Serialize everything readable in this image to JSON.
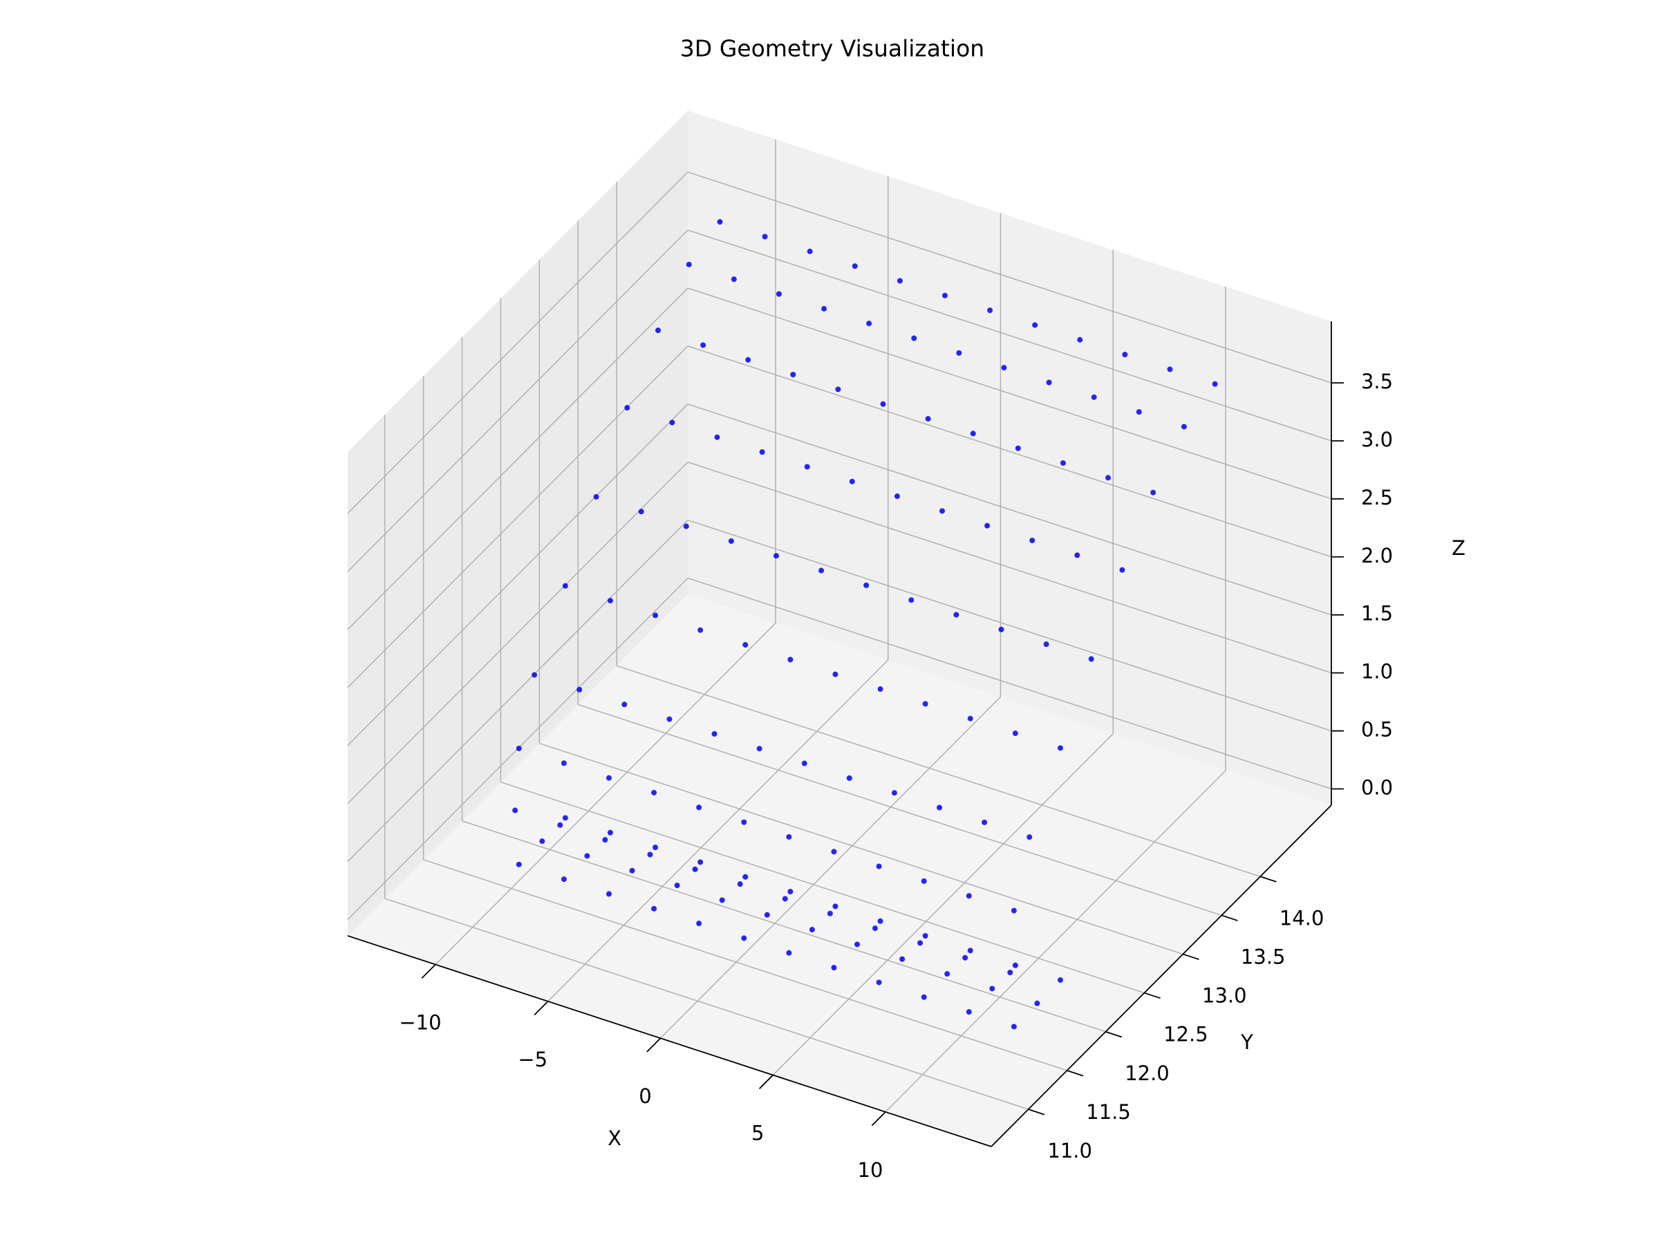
{
  "chart_data": {
    "type": "scatter3d",
    "title": "3D Geometry Visualization",
    "x_label": "X",
    "y_label": "Y",
    "z_label": "Z",
    "color": "#0000ff",
    "grid": true,
    "xlim": [
      -13.9,
      14.7
    ],
    "ylim": [
      10.52,
      14.92
    ],
    "zlim": [
      -0.14,
      4.03
    ],
    "xticks": [
      {
        "value": -10,
        "label": "−10"
      },
      {
        "value": -5,
        "label": "−5"
      },
      0,
      5,
      10
    ],
    "yticks": [
      {
        "value": 11,
        "label": "11.0"
      },
      11.5,
      {
        "value": 12,
        "label": "12.0"
      },
      12.5,
      {
        "value": 13,
        "label": "13.0"
      },
      13.5,
      {
        "value": 14,
        "label": "14.0"
      }
    ],
    "zticks": [
      {
        "value": 0,
        "label": "0.0"
      },
      0.5,
      {
        "value": 1,
        "label": "1.0"
      },
      1.5,
      {
        "value": 2,
        "label": "2.0"
      },
      2.5,
      {
        "value": 3,
        "label": "3.0"
      },
      3.5
    ],
    "x": [
      -10,
      -8,
      -6,
      -4,
      -2,
      0,
      2,
      4,
      6,
      8,
      10,
      12,
      -10,
      -8,
      -6,
      -4,
      -2,
      0,
      2,
      4,
      6,
      8,
      10,
      12,
      -10,
      -8,
      -6,
      -4,
      -2,
      0,
      2,
      4,
      6,
      8,
      10,
      12,
      -10,
      -8,
      -6,
      -4,
      -2,
      0,
      2,
      4,
      6,
      8,
      10,
      12,
      -10,
      -8,
      -6,
      -4,
      -2,
      0,
      2,
      4,
      6,
      8,
      10,
      12,
      -10,
      -8,
      -6,
      -4,
      -2,
      0,
      2,
      4,
      6,
      8,
      10,
      12,
      -10,
      -8,
      -6,
      -4,
      -2,
      0,
      2,
      4,
      6,
      8,
      10,
      12,
      -10,
      -8,
      -6,
      -4,
      -2,
      0,
      2,
      4,
      6,
      8,
      10,
      12,
      -10,
      -8,
      -6,
      -4,
      -2,
      0,
      2,
      4,
      6,
      8,
      10,
      12,
      -10,
      -8,
      -6,
      -4,
      -2,
      0,
      2,
      4,
      6,
      8,
      10,
      12,
      -10,
      -8,
      -6,
      -4,
      -2,
      0,
      2,
      4,
      6,
      8,
      10,
      12,
      -10,
      -8,
      -6,
      -4,
      -2,
      0,
      2,
      4,
      6,
      8,
      10,
      12
    ],
    "y": [
      11.6,
      11.6,
      11.6,
      11.6,
      11.6,
      11.6,
      11.6,
      11.6,
      11.6,
      11.6,
      11.6,
      11.6,
      11.9,
      11.9,
      11.9,
      11.9,
      11.9,
      11.9,
      11.9,
      11.9,
      11.9,
      11.9,
      11.9,
      11.9,
      12.2,
      12.2,
      12.2,
      12.2,
      12.2,
      12.2,
      12.2,
      12.2,
      12.2,
      12.2,
      12.2,
      12.2,
      11.55,
      11.55,
      11.55,
      11.55,
      11.55,
      11.55,
      11.55,
      11.55,
      11.55,
      11.55,
      11.55,
      11.55,
      11.6,
      11.6,
      11.6,
      11.6,
      11.6,
      11.6,
      11.6,
      11.6,
      11.6,
      11.6,
      11.6,
      11.6,
      11.8,
      11.8,
      11.8,
      11.8,
      11.8,
      11.8,
      11.8,
      11.8,
      11.8,
      11.8,
      11.8,
      11.8,
      12.2,
      12.2,
      12.2,
      12.2,
      12.2,
      12.2,
      12.2,
      12.2,
      12.2,
      12.2,
      12.2,
      12.2,
      12.6,
      12.6,
      12.6,
      12.6,
      12.6,
      12.6,
      12.6,
      12.6,
      12.6,
      12.6,
      12.6,
      12.6,
      13.0,
      13.0,
      13.0,
      13.0,
      13.0,
      13.0,
      13.0,
      13.0,
      13.0,
      13.0,
      13.0,
      13.0,
      13.4,
      13.4,
      13.4,
      13.4,
      13.4,
      13.4,
      13.4,
      13.4,
      13.4,
      13.4,
      13.4,
      13.4,
      13.8,
      13.8,
      13.8,
      13.8,
      13.8,
      13.8,
      13.8,
      13.8,
      13.8,
      13.8,
      13.8,
      13.8,
      14.2,
      14.2,
      14.2,
      14.2,
      14.2,
      14.2,
      14.2,
      14.2,
      14.2,
      14.2,
      14.2,
      14.2
    ],
    "z": [
      0,
      0,
      0,
      0,
      0,
      0,
      0,
      0,
      0,
      0,
      0,
      0,
      0,
      0,
      0,
      0,
      0,
      0,
      0,
      0,
      0,
      0,
      0,
      0,
      0,
      0,
      0,
      0,
      0,
      0,
      0,
      0,
      0,
      0,
      0,
      0,
      0.5,
      0.5,
      0.5,
      0.5,
      0.5,
      0.5,
      0.5,
      0.5,
      0.5,
      0.5,
      0.5,
      0.5,
      1.0,
      1.0,
      1.0,
      1.0,
      1.0,
      1.0,
      1.0,
      1.0,
      1.0,
      1.0,
      1.0,
      1.0,
      1.5,
      1.5,
      1.5,
      1.5,
      1.5,
      1.5,
      1.5,
      1.5,
      1.5,
      1.5,
      1.5,
      1.5,
      2.0,
      2.0,
      2.0,
      2.0,
      2.0,
      2.0,
      2.0,
      2.0,
      2.0,
      2.0,
      2.0,
      2.0,
      2.5,
      2.5,
      2.5,
      2.5,
      2.5,
      2.5,
      2.5,
      2.5,
      2.5,
      2.5,
      2.5,
      2.5,
      3.0,
      3.0,
      3.0,
      3.0,
      3.0,
      3.0,
      3.0,
      3.0,
      3.0,
      3.0,
      3.0,
      3.0,
      3.4,
      3.4,
      3.4,
      3.4,
      3.4,
      3.4,
      3.4,
      3.4,
      3.4,
      3.4,
      3.4,
      3.4,
      3.7,
      3.7,
      3.7,
      3.7,
      3.7,
      3.7,
      3.7,
      3.7,
      3.7,
      3.7,
      3.7,
      3.7,
      3.8,
      3.8,
      3.8,
      3.8,
      3.8,
      3.8,
      3.8,
      3.8,
      3.8,
      3.8,
      3.8,
      3.8
    ]
  }
}
